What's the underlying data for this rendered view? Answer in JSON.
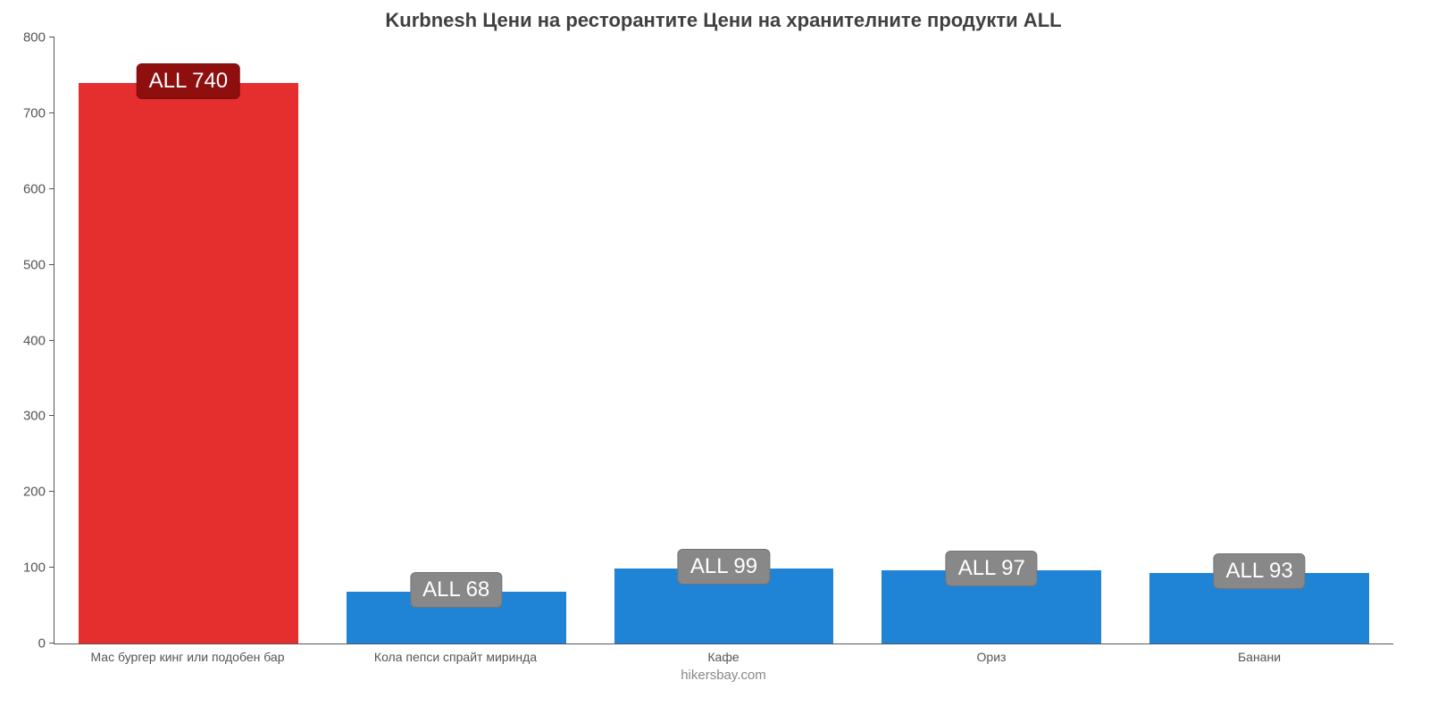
{
  "chart": {
    "type": "bar",
    "title": "Kurbnesh Цени на ресторантите Цени на хранителните продукти ALL",
    "title_fontsize": 22,
    "title_color": "#404040",
    "footer": "hikersbay.com",
    "footer_fontsize": 15,
    "footer_color": "#888888",
    "background_color": "#ffffff",
    "axis_color": "#555555",
    "ylim": [
      0,
      800
    ],
    "ytick_step": 100,
    "yticks": [
      "0",
      "100",
      "200",
      "300",
      "400",
      "500",
      "600",
      "700",
      "800"
    ],
    "ytick_fontsize": 15,
    "xlabel_fontsize": 14,
    "bar_width_pct": 82,
    "categories": [
      "Мас бургер кинг или подобен бар",
      "Кола пепси спрайт миринда",
      "Кафе",
      "Ориз",
      "Банани"
    ],
    "values": [
      740,
      68,
      99,
      97,
      93
    ],
    "value_labels": [
      "ALL 740",
      "ALL 68",
      "ALL 99",
      "ALL 97",
      "ALL 93"
    ],
    "bar_colors": [
      "#e52f2f",
      "#1f84d6",
      "#1f84d6",
      "#1f84d6",
      "#1f84d6"
    ],
    "badge_colors": [
      "#8f0f0f",
      "#888888",
      "#888888",
      "#888888",
      "#888888"
    ],
    "badge_text_color": "#ffffff",
    "badge_fontsize": 24
  }
}
